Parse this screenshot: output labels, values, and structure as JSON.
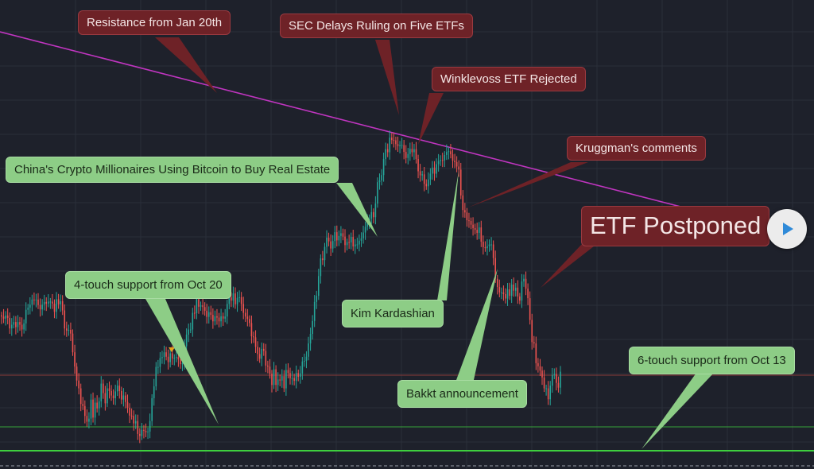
{
  "chart_data": {
    "type": "candlestick",
    "grid": true,
    "colors": {
      "up": "#26a69a",
      "down": "#ef5350",
      "resistance_line": "#c035c0",
      "support_line": "#3ecf3e",
      "price_line": "#8a3a3a",
      "red_callout": "#6e2227",
      "green_callout": "#8dcd86",
      "background": "#1e212b"
    },
    "annotations": [
      {
        "text": "Resistance from Jan 20th",
        "style": "red"
      },
      {
        "text": "SEC Delays Ruling on Five ETFs",
        "style": "red"
      },
      {
        "text": "Winklevoss ETF Rejected",
        "style": "red"
      },
      {
        "text": "Kruggman's comments",
        "style": "red"
      },
      {
        "text": "ETF Postponed",
        "style": "red"
      },
      {
        "text": "China's Crypto Millionaires Using Bitcoin to Buy Real Estate",
        "style": "green"
      },
      {
        "text": "4-touch support from Oct 20",
        "style": "green"
      },
      {
        "text": "Kim Kardashian",
        "style": "green"
      },
      {
        "text": "Bakkt announcement",
        "style": "green"
      },
      {
        "text": "6-touch support from Oct 13",
        "style": "green"
      }
    ],
    "levels": {
      "resistance": {
        "name": "Resistance from Jan 20th"
      },
      "supports": [
        {
          "name": "4-touch support from Oct 20"
        },
        {
          "name": "6-touch support from Oct 13"
        }
      ]
    },
    "closes": [
      0.42,
      0.414,
      0.423,
      0.416,
      0.385,
      0.396,
      0.404,
      0.389,
      0.404,
      0.396,
      0.382,
      0.4,
      0.44,
      0.446,
      0.455,
      0.47,
      0.469,
      0.47,
      0.454,
      0.441,
      0.455,
      0.463,
      0.458,
      0.464,
      0.464,
      0.458,
      0.434,
      0.471,
      0.456,
      0.465,
      0.438,
      0.385,
      0.379,
      0.381,
      0.37,
      0.315,
      0.273,
      0.232,
      0.209,
      0.163,
      0.157,
      0.128,
      0.111,
      0.12,
      0.176,
      0.123,
      0.167,
      0.15,
      0.171,
      0.223,
      0.195,
      0.165,
      0.209,
      0.201,
      0.188,
      0.18,
      0.2,
      0.217,
      0.201,
      0.176,
      0.188,
      0.169,
      0.152,
      0.129,
      0.128,
      0.106,
      0.113,
      0.075,
      0.069,
      0.087,
      0.084,
      0.08,
      0.082,
      0.113,
      0.18,
      0.215,
      0.272,
      0.272,
      0.298,
      0.301,
      0.315,
      0.302,
      0.286,
      0.312,
      0.297,
      0.299,
      0.301,
      0.294,
      0.28,
      0.283,
      0.333,
      0.367,
      0.382,
      0.382,
      0.431,
      0.43,
      0.471,
      0.449,
      0.453,
      0.448,
      0.437,
      0.419,
      0.433,
      0.425,
      0.406,
      0.421,
      0.417,
      0.406,
      0.421,
      0.414,
      0.42,
      0.457,
      0.476,
      0.467,
      0.488,
      0.456,
      0.475,
      0.477,
      0.457,
      0.431,
      0.42,
      0.413,
      0.401,
      0.362,
      0.359,
      0.331,
      0.31,
      0.296,
      0.325,
      0.319,
      0.276,
      0.273,
      0.252,
      0.219,
      0.265,
      0.219,
      0.235,
      0.232,
      0.245,
      0.209,
      0.263,
      0.254,
      0.239,
      0.239,
      0.231,
      0.254,
      0.243,
      0.253,
      0.288,
      0.29,
      0.302,
      0.341,
      0.369,
      0.407,
      0.463,
      0.481,
      0.539,
      0.591,
      0.586,
      0.625,
      0.652,
      0.641,
      0.62,
      0.642,
      0.668,
      0.644,
      0.657,
      0.665,
      0.655,
      0.63,
      0.639,
      0.638,
      0.654,
      0.626,
      0.632,
      0.632,
      0.643,
      0.65,
      0.667,
      0.684,
      0.699,
      0.708,
      0.727,
      0.712,
      0.752,
      0.815,
      0.82,
      0.836,
      0.883,
      0.912,
      0.903,
      0.946,
      0.939,
      0.938,
      0.927,
      0.921,
      0.924,
      0.924,
      0.904,
      0.886,
      0.898,
      0.913,
      0.903,
      0.912,
      0.883,
      0.847,
      0.835,
      0.838,
      0.81,
      0.803,
      0.823,
      0.84,
      0.858,
      0.84,
      0.868,
      0.877,
      0.88,
      0.879,
      0.895,
      0.904,
      0.906,
      0.897,
      0.878,
      0.874,
      0.861,
      0.852,
      0.776,
      0.733,
      0.726,
      0.703,
      0.701,
      0.69,
      0.68,
      0.675,
      0.666,
      0.682,
      0.64,
      0.624,
      0.621,
      0.627,
      0.632,
      0.632,
      0.592,
      0.531,
      0.507,
      0.491,
      0.491,
      0.486,
      0.473,
      0.5,
      0.481,
      0.514,
      0.496,
      0.505,
      0.479,
      0.467,
      0.523,
      0.531,
      0.502,
      0.474,
      0.41,
      0.345,
      0.341,
      0.283,
      0.274,
      0.261,
      0.241,
      0.209,
      0.209,
      0.177,
      0.217,
      0.248,
      0.251,
      0.225,
      0.211,
      0.258
    ]
  }
}
